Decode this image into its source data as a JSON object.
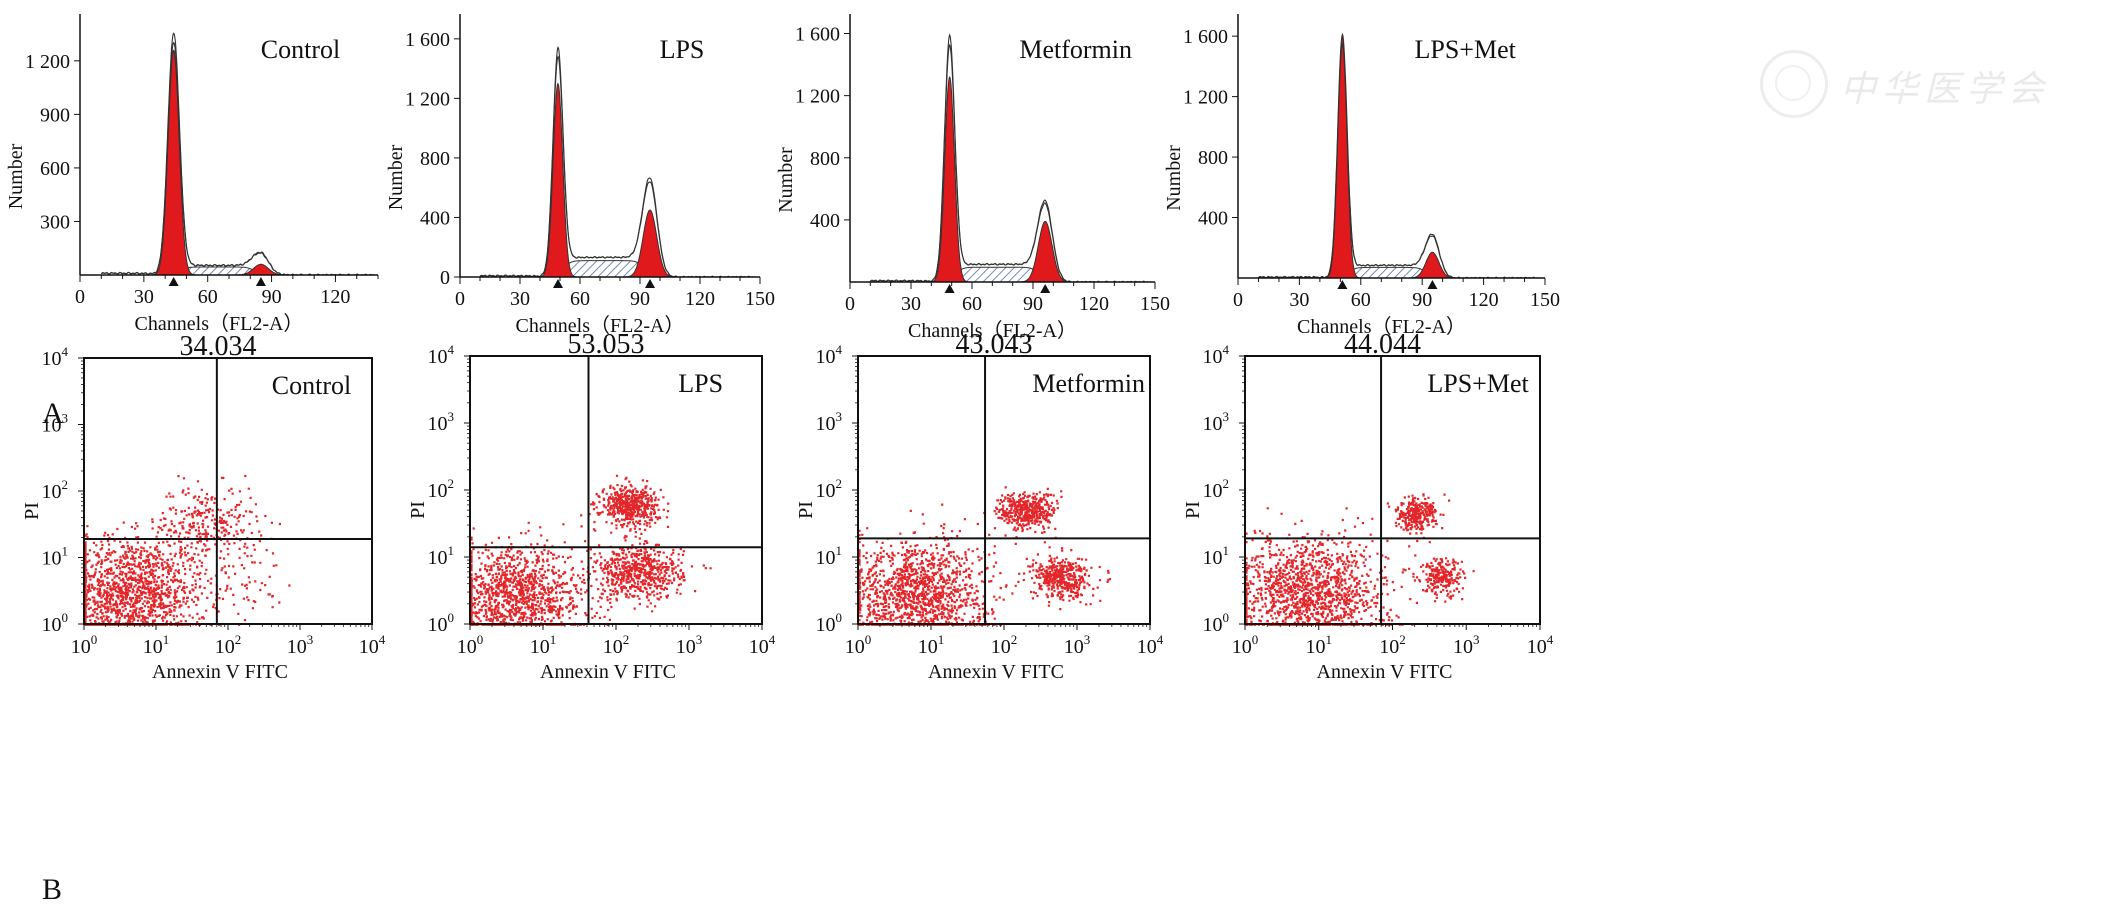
{
  "figure": {
    "row_a_label": "A",
    "row_b_label": "B",
    "watermark_text": "中华医学会"
  },
  "chart_data": [
    {
      "type": "area",
      "subtype": "cell-cycle-histogram",
      "title": "Control",
      "xlabel": "Channels（FL2-A）",
      "ylabel": "Number",
      "xlim": [
        0,
        140
      ],
      "ylim": [
        0,
        1440
      ],
      "xticks": [
        0,
        30,
        60,
        90,
        120
      ],
      "yticks": [
        300,
        600,
        900,
        1200
      ],
      "ytick_labels": [
        "300",
        "600",
        "900",
        "1 200"
      ],
      "peaks": {
        "G1": {
          "x": 44,
          "y": 1260,
          "sd": 2.6,
          "outline_max": 1350
        },
        "G2": {
          "x": 85,
          "y": 60,
          "sd": 3.5,
          "outline_max": 120
        },
        "S_level": 45,
        "debris_level": 10
      },
      "markers_x": [
        44,
        85
      ]
    },
    {
      "type": "area",
      "subtype": "cell-cycle-histogram",
      "title": "LPS",
      "xlabel": "Channels（FL2-A）",
      "ylabel": "Number",
      "xlim": [
        0,
        150
      ],
      "ylim": [
        0,
        1740
      ],
      "xticks": [
        0,
        30,
        60,
        90,
        120,
        150
      ],
      "yticks": [
        0,
        400,
        800,
        1200,
        1600
      ],
      "ytick_labels": [
        "0",
        "400",
        "800",
        "1 200",
        "1 600"
      ],
      "peaks": {
        "G1": {
          "x": 49,
          "y": 1300,
          "sd": 2.4,
          "outline_max": 1520
        },
        "G2": {
          "x": 95,
          "y": 450,
          "sd": 3.4,
          "outline_max": 650
        },
        "S_level": 110,
        "debris_level": 8
      },
      "markers_x": [
        49,
        95
      ]
    },
    {
      "type": "area",
      "subtype": "cell-cycle-histogram",
      "title": "Metformin",
      "xlabel": "Channels（FL2-A）",
      "ylabel": "Number",
      "xlim": [
        0,
        150
      ],
      "ylim": [
        0,
        1700
      ],
      "xticks": [
        0,
        30,
        60,
        90,
        120,
        150
      ],
      "yticks": [
        400,
        800,
        1200,
        1600
      ],
      "ytick_labels": [
        "400",
        "800",
        "1 200",
        "1 600"
      ],
      "peaks": {
        "G1": {
          "x": 49,
          "y": 1320,
          "sd": 2.4,
          "outline_max": 1570
        },
        "G2": {
          "x": 96,
          "y": 390,
          "sd": 3.4,
          "outline_max": 510
        },
        "S_level": 95,
        "debris_level": 8
      },
      "markers_x": [
        49,
        96
      ]
    },
    {
      "type": "area",
      "subtype": "cell-cycle-histogram",
      "title": "LPS+Met",
      "xlabel": "Channels（FL2-A）",
      "ylabel": "Number",
      "xlim": [
        0,
        150
      ],
      "ylim": [
        0,
        1720
      ],
      "xticks": [
        0,
        30,
        60,
        90,
        120,
        150
      ],
      "yticks": [
        400,
        800,
        1200,
        1600
      ],
      "ytick_labels": [
        "400",
        "800",
        "1 200",
        "1 600"
      ],
      "peaks": {
        "G1": {
          "x": 51,
          "y": 1600,
          "sd": 2.2,
          "outline_max": 1600
        },
        "G2": {
          "x": 95,
          "y": 170,
          "sd": 3.2,
          "outline_max": 280
        },
        "S_level": 70,
        "debris_level": 6
      },
      "markers_x": [
        51,
        95
      ]
    },
    {
      "type": "scatter",
      "subtype": "annexin-v-pi",
      "top_label": "34.034",
      "title": "Control",
      "xlabel": "Annexin V FITC",
      "ylabel": "PI",
      "log_scale": true,
      "xlim": [
        1,
        10000
      ],
      "ylim": [
        1,
        10000
      ],
      "tick_exponents": [
        0,
        1,
        2,
        3,
        4
      ],
      "gate": {
        "x": 70,
        "y": 19
      },
      "clusters": [
        {
          "cx": 4,
          "cy": 3,
          "sx": 0.55,
          "sy": 0.42,
          "n": 1500
        },
        {
          "cx": 50,
          "cy": 35,
          "sx": 0.35,
          "sy": 0.28,
          "n": 260
        },
        {
          "cx": 150,
          "cy": 6,
          "sx": 0.3,
          "sy": 0.3,
          "n": 60
        }
      ]
    },
    {
      "type": "scatter",
      "subtype": "annexin-v-pi",
      "top_label": "53.053",
      "title": "LPS",
      "xlabel": "Annexin V FITC",
      "ylabel": "PI",
      "log_scale": true,
      "xlim": [
        1,
        10000
      ],
      "ylim": [
        1,
        10000
      ],
      "tick_exponents": [
        0,
        1,
        2,
        3,
        4
      ],
      "gate": {
        "x": 42,
        "y": 14
      },
      "clusters": [
        {
          "cx": 4,
          "cy": 2.5,
          "sx": 0.5,
          "sy": 0.38,
          "n": 1300
        },
        {
          "cx": 150,
          "cy": 60,
          "sx": 0.2,
          "sy": 0.15,
          "n": 500
        },
        {
          "cx": 200,
          "cy": 6,
          "sx": 0.3,
          "sy": 0.2,
          "n": 600
        }
      ]
    },
    {
      "type": "scatter",
      "subtype": "annexin-v-pi",
      "top_label": "43.043",
      "title": "Metformin",
      "xlabel": "Annexin V FITC",
      "ylabel": "PI",
      "log_scale": true,
      "xlim": [
        1,
        10000
      ],
      "ylim": [
        1,
        10000
      ],
      "tick_exponents": [
        0,
        1,
        2,
        3,
        4
      ],
      "gate": {
        "x": 55,
        "y": 19
      },
      "clusters": [
        {
          "cx": 6,
          "cy": 3,
          "sx": 0.5,
          "sy": 0.4,
          "n": 1400
        },
        {
          "cx": 200,
          "cy": 50,
          "sx": 0.2,
          "sy": 0.14,
          "n": 420
        },
        {
          "cx": 600,
          "cy": 5,
          "sx": 0.2,
          "sy": 0.16,
          "n": 420
        }
      ]
    },
    {
      "type": "scatter",
      "subtype": "annexin-v-pi",
      "top_label": "44.044",
      "title": "LPS+Met",
      "xlabel": "Annexin V FITC",
      "ylabel": "PI",
      "log_scale": true,
      "xlim": [
        1,
        10000
      ],
      "ylim": [
        1,
        10000
      ],
      "tick_exponents": [
        0,
        1,
        2,
        3,
        4
      ],
      "gate": {
        "x": 70,
        "y": 19
      },
      "clusters": [
        {
          "cx": 8,
          "cy": 3,
          "sx": 0.5,
          "sy": 0.4,
          "n": 1400
        },
        {
          "cx": 200,
          "cy": 45,
          "sx": 0.14,
          "sy": 0.12,
          "n": 280
        },
        {
          "cx": 450,
          "cy": 5,
          "sx": 0.14,
          "sy": 0.14,
          "n": 230
        }
      ]
    }
  ],
  "colors": {
    "fill": "#e0191c",
    "dot": "#e3262a",
    "hatch": "#4f6fa0",
    "outline": "#333333",
    "axis": "#111111"
  }
}
